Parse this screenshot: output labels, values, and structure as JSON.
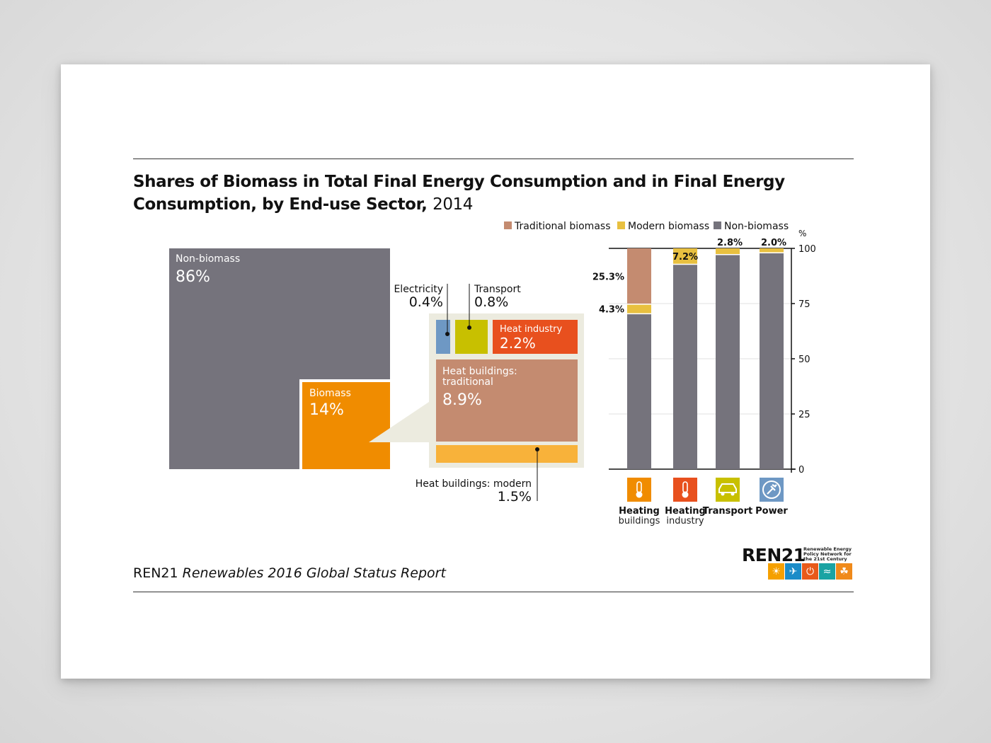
{
  "title": {
    "main": "Shares of Biomass in Total Final Energy Consumption and in Final Energy Consumption, by End-use Sector,",
    "year": "2014"
  },
  "source": {
    "org": "REN21",
    "report": "Renewables 2016 Global Status Report"
  },
  "logo": {
    "text": "REN21",
    "subtitle": "Renewable Energy Policy Network for the 21st Century",
    "tiles": [
      {
        "icon": "sun-icon",
        "color": "#f5a000"
      },
      {
        "icon": "wind-icon",
        "color": "#1a8cc8"
      },
      {
        "icon": "power-icon",
        "color": "#e85a1a"
      },
      {
        "icon": "water-icon",
        "color": "#1aa3a3"
      },
      {
        "icon": "leaf-icon",
        "color": "#f08a1a"
      }
    ]
  },
  "colors": {
    "non_biomass": "#75737c",
    "biomass": "#f08c00",
    "electricity": "#6e98c4",
    "transport": "#c8c000",
    "heat_industry": "#e8501e",
    "heat_buildings_traditional": "#c48b70",
    "heat_buildings_modern": "#f8b23a",
    "modern_biomass": "#e8c040",
    "zoom_bg": "#ecebdf"
  },
  "chart_data": [
    {
      "type": "treemap",
      "items": [
        {
          "name": "Non-biomass",
          "value": "86%"
        },
        {
          "name": "Biomass",
          "value": "14%"
        },
        {
          "name": "Electricity",
          "value": "0.4%"
        },
        {
          "name": "Transport",
          "value": "0.8%"
        },
        {
          "name": "Heat industry",
          "value": "2.2%"
        },
        {
          "name": "Heat buildings: traditional",
          "value": "8.9%"
        },
        {
          "name": "Heat buildings: modern",
          "value": "1.5%"
        }
      ]
    },
    {
      "type": "bar",
      "stacked": true,
      "categories": [
        "Heating buildings",
        "Heating industry",
        "Transport",
        "Power"
      ],
      "category_labels": [
        {
          "line1": "Heating",
          "line2": "buildings",
          "icon": "thermometer-icon",
          "color": "#f08c00"
        },
        {
          "line1": "Heating",
          "line2": "industry",
          "icon": "thermometer-icon",
          "color": "#e8501e"
        },
        {
          "line1": "Transport",
          "line2": "",
          "icon": "car-icon",
          "color": "#c8c000"
        },
        {
          "line1": "Power",
          "line2": "",
          "icon": "plug-icon",
          "color": "#6e98c4"
        }
      ],
      "series": [
        {
          "name": "Non-biomass",
          "color": "#75737c",
          "values": [
            70.4,
            92.8,
            97.2,
            98.0
          ]
        },
        {
          "name": "Modern biomass",
          "color": "#e8c040",
          "values": [
            4.3,
            7.2,
            2.8,
            2.0
          ]
        },
        {
          "name": "Traditional biomass",
          "color": "#c48b70",
          "values": [
            25.3,
            0,
            0,
            0
          ]
        }
      ],
      "legend_order": [
        "Traditional biomass",
        "Modern biomass",
        "Non-biomass"
      ],
      "data_labels": [
        {
          "text": "25.3%",
          "category": 0,
          "series": "Traditional biomass"
        },
        {
          "text": "4.3%",
          "category": 0,
          "series": "Modern biomass"
        },
        {
          "text": "7.2%",
          "category": 1,
          "series": "Modern biomass"
        },
        {
          "text": "2.8%",
          "category": 2,
          "series": "Modern biomass"
        },
        {
          "text": "2.0%",
          "category": 3,
          "series": "Modern biomass"
        }
      ],
      "ylabel": "%",
      "ylim": [
        0,
        100
      ],
      "yticks": [
        0,
        25,
        50,
        75,
        100
      ],
      "grid": true,
      "legend_position": "top"
    }
  ]
}
